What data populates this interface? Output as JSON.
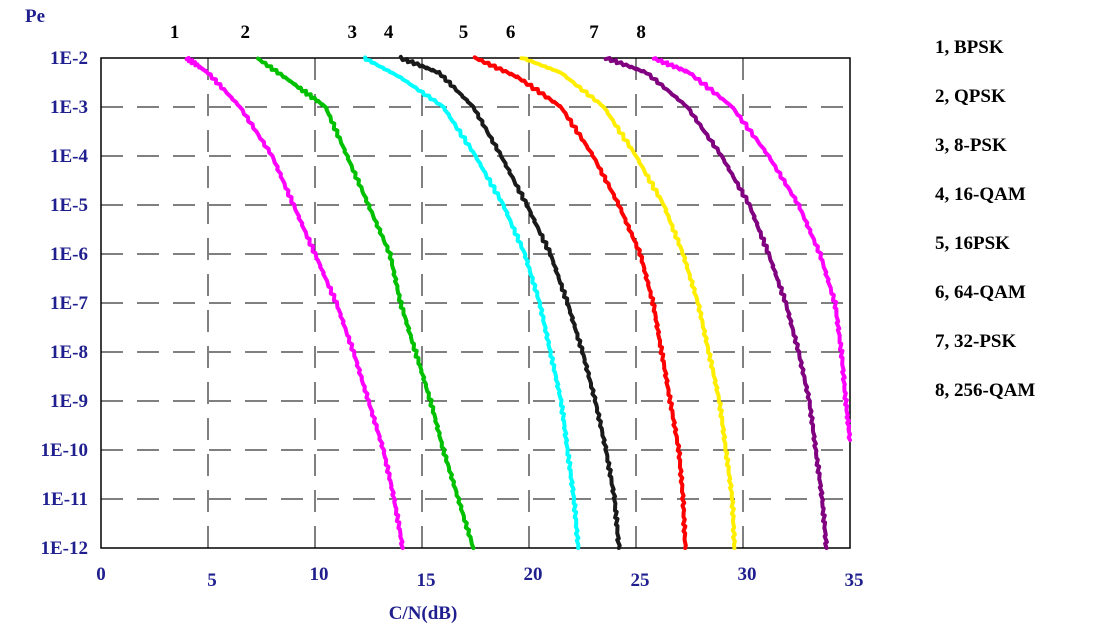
{
  "chart_data": {
    "type": "line",
    "xlabel": "C/N(dB)",
    "ylabel": "Pe",
    "xlim": [
      0,
      35
    ],
    "ylim": [
      -12,
      -2
    ],
    "y_scale": "log",
    "grid": true,
    "x_ticks": [
      "0",
      "5",
      "10",
      "15",
      "20",
      "25",
      "30",
      "35"
    ],
    "y_ticks": [
      "1E-2",
      "1E-3",
      "1E-4",
      "1E-5",
      "1E-6",
      "1E-7",
      "1E-8",
      "1E-9",
      "1E-10",
      "1E-11",
      "1E-12"
    ],
    "legend": [
      "1, BPSK",
      "2, QPSK",
      "3, 8-PSK",
      "4, 16-QAM",
      "5, 16PSK",
      "6, 64-QAM",
      "7, 32-PSK",
      "8, 256-QAM"
    ],
    "legend_position": "right",
    "series": [
      {
        "label": "1",
        "color": "#ff00ff",
        "points": [
          [
            4.0,
            0.01
          ],
          [
            5.0,
            0.005
          ],
          [
            6.5,
            0.001
          ],
          [
            8.0,
            0.0001
          ],
          [
            9.0,
            1e-05
          ],
          [
            10.0,
            1e-06
          ],
          [
            11.0,
            1e-07
          ],
          [
            11.8,
            1e-08
          ],
          [
            12.5,
            1e-09
          ],
          [
            13.2,
            1e-10
          ],
          [
            13.7,
            1e-11
          ],
          [
            14.1,
            1e-12
          ]
        ]
      },
      {
        "label": "2",
        "color": "#00c000",
        "points": [
          [
            7.3,
            0.01
          ],
          [
            9.0,
            0.003
          ],
          [
            10.5,
            0.001
          ],
          [
            11.5,
            0.0001
          ],
          [
            12.5,
            1e-05
          ],
          [
            13.5,
            1e-06
          ],
          [
            14.0,
            1e-07
          ],
          [
            14.7,
            1e-08
          ],
          [
            15.4,
            1e-09
          ],
          [
            16.0,
            1e-10
          ],
          [
            16.7,
            1e-11
          ],
          [
            17.4,
            1e-12
          ]
        ]
      },
      {
        "label": "3",
        "color": "#00ffff",
        "points": [
          [
            12.3,
            0.01
          ],
          [
            14.0,
            0.004
          ],
          [
            16.0,
            0.001
          ],
          [
            17.5,
            0.0001
          ],
          [
            18.8,
            1e-05
          ],
          [
            19.8,
            1e-06
          ],
          [
            20.5,
            1e-07
          ],
          [
            21.0,
            1e-08
          ],
          [
            21.5,
            1e-09
          ],
          [
            21.8,
            1e-10
          ],
          [
            22.1,
            1e-11
          ],
          [
            22.3,
            1e-12
          ]
        ]
      },
      {
        "label": "4",
        "color": "#1a1a1a",
        "points": [
          [
            14.0,
            0.01
          ],
          [
            15.8,
            0.005
          ],
          [
            17.4,
            0.001
          ],
          [
            18.7,
            0.0001
          ],
          [
            19.9,
            1e-05
          ],
          [
            21.0,
            1e-06
          ],
          [
            21.8,
            1e-07
          ],
          [
            22.5,
            1e-08
          ],
          [
            23.1,
            1e-09
          ],
          [
            23.6,
            1e-10
          ],
          [
            24.0,
            1e-11
          ],
          [
            24.2,
            1e-12
          ]
        ]
      },
      {
        "label": "5",
        "color": "#ff0000",
        "points": [
          [
            17.5,
            0.01
          ],
          [
            19.5,
            0.004
          ],
          [
            21.5,
            0.001
          ],
          [
            23.0,
            0.0001
          ],
          [
            24.2,
            1e-05
          ],
          [
            25.2,
            1e-06
          ],
          [
            25.8,
            1e-07
          ],
          [
            26.2,
            1e-08
          ],
          [
            26.6,
            1e-09
          ],
          [
            27.0,
            1e-10
          ],
          [
            27.2,
            1e-11
          ],
          [
            27.3,
            1e-12
          ]
        ]
      },
      {
        "label": "6",
        "color": "#ffee00",
        "points": [
          [
            19.7,
            0.01
          ],
          [
            21.5,
            0.005
          ],
          [
            23.5,
            0.001
          ],
          [
            25.0,
            0.0001
          ],
          [
            26.3,
            1e-05
          ],
          [
            27.2,
            1e-06
          ],
          [
            27.9,
            1e-07
          ],
          [
            28.4,
            1e-08
          ],
          [
            28.9,
            1e-09
          ],
          [
            29.2,
            1e-10
          ],
          [
            29.5,
            1e-11
          ],
          [
            29.6,
            1e-12
          ]
        ]
      },
      {
        "label": "7",
        "color": "#800080",
        "points": [
          [
            23.6,
            0.01
          ],
          [
            25.5,
            0.005
          ],
          [
            27.4,
            0.001
          ],
          [
            29.0,
            0.0001
          ],
          [
            30.3,
            1e-05
          ],
          [
            31.2,
            1e-06
          ],
          [
            32.0,
            1e-07
          ],
          [
            32.6,
            1e-08
          ],
          [
            33.1,
            1e-09
          ],
          [
            33.4,
            1e-10
          ],
          [
            33.7,
            1e-11
          ],
          [
            33.9,
            1e-12
          ]
        ]
      },
      {
        "label": "8",
        "color": "#ff00ff",
        "points": [
          [
            25.8,
            0.01
          ],
          [
            27.5,
            0.005
          ],
          [
            29.5,
            0.001
          ],
          [
            31.2,
            0.0001
          ],
          [
            32.6,
            1e-05
          ],
          [
            33.6,
            1e-06
          ],
          [
            34.3,
            1e-07
          ],
          [
            34.6,
            1e-08
          ],
          [
            34.8,
            1e-09
          ],
          [
            35.0,
            1.6e-10
          ]
        ]
      }
    ]
  }
}
